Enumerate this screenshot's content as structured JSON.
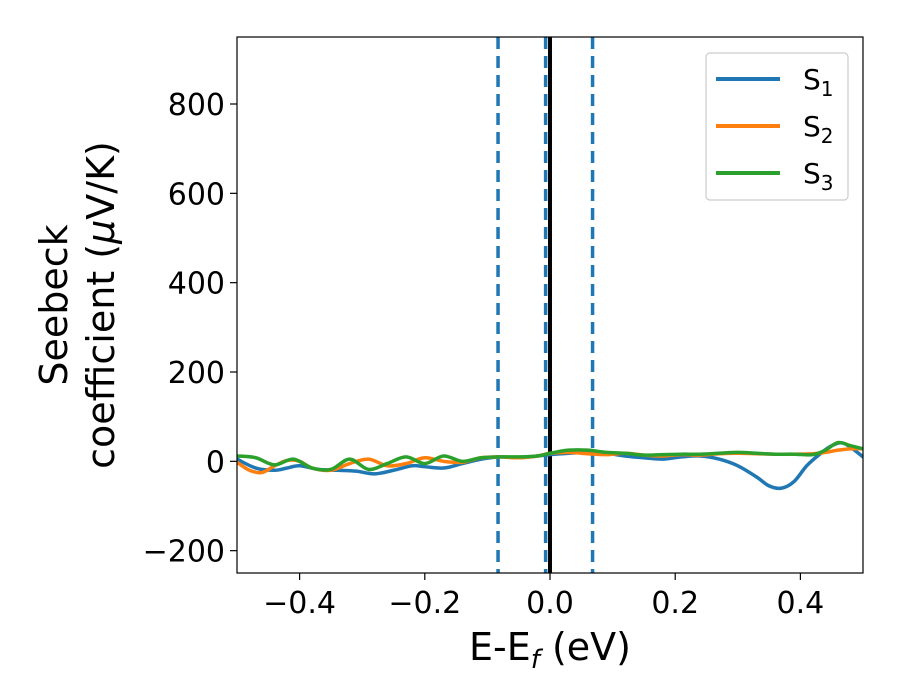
{
  "chart_data": {
    "type": "line",
    "xlabel": "E-E",
    "xlabel_sub": "f",
    "xlabel_unit": " (eV)",
    "ylabel_line1": "Seebeck",
    "ylabel_line2": "coefficient  (",
    "ylabel_mu": "μ",
    "ylabel_unit": "V/K)",
    "xlim": [
      -0.5,
      0.5
    ],
    "ylim": [
      -250,
      950
    ],
    "xticks": [
      -0.4,
      -0.2,
      0.0,
      0.2,
      0.4
    ],
    "xtick_labels": [
      "−0.4",
      "−0.2",
      "0.0",
      "0.2",
      "0.4"
    ],
    "yticks": [
      -200,
      0,
      200,
      400,
      600,
      800
    ],
    "ytick_labels": [
      "−200",
      "0",
      "200",
      "400",
      "600",
      "800"
    ],
    "legend_position": "top-right",
    "vlines": [
      {
        "x": -0.083,
        "style": "dashed",
        "color": "#1f77b4"
      },
      {
        "x": -0.007,
        "style": "dashed",
        "color": "#1f77b4"
      },
      {
        "x": 0.068,
        "style": "dashed",
        "color": "#1f77b4"
      },
      {
        "x": 0.0,
        "style": "solid",
        "color": "#000000"
      }
    ],
    "series": [
      {
        "name": "S",
        "sub": "1",
        "color": "#1f77b4",
        "x": [
          -0.5,
          -0.47,
          -0.44,
          -0.42,
          -0.4,
          -0.37,
          -0.34,
          -0.31,
          -0.28,
          -0.25,
          -0.22,
          -0.2,
          -0.17,
          -0.14,
          -0.11,
          -0.08,
          -0.05,
          -0.02,
          0.0,
          0.03,
          0.06,
          0.09,
          0.12,
          0.15,
          0.18,
          0.21,
          0.24,
          0.27,
          0.3,
          0.33,
          0.35,
          0.37,
          0.39,
          0.41,
          0.43,
          0.45,
          0.47,
          0.5
        ],
        "y": [
          5,
          -15,
          -20,
          -15,
          -10,
          -18,
          -20,
          -22,
          -28,
          -20,
          -10,
          -12,
          -15,
          -5,
          5,
          10,
          8,
          12,
          15,
          18,
          20,
          18,
          12,
          8,
          5,
          10,
          12,
          5,
          -10,
          -35,
          -55,
          -60,
          -45,
          -10,
          15,
          35,
          40,
          10
        ]
      },
      {
        "name": "S",
        "sub": "2",
        "color": "#ff7f0e",
        "x": [
          -0.5,
          -0.48,
          -0.46,
          -0.44,
          -0.42,
          -0.4,
          -0.38,
          -0.35,
          -0.32,
          -0.29,
          -0.26,
          -0.23,
          -0.2,
          -0.17,
          -0.14,
          -0.11,
          -0.08,
          -0.05,
          -0.02,
          0.0,
          0.03,
          0.06,
          0.09,
          0.12,
          0.15,
          0.18,
          0.21,
          0.24,
          0.27,
          0.3,
          0.33,
          0.36,
          0.39,
          0.42,
          0.44,
          0.46,
          0.48,
          0.5
        ],
        "y": [
          -2,
          -20,
          -25,
          -10,
          2,
          0,
          -15,
          -20,
          -5,
          5,
          -10,
          -5,
          8,
          0,
          -2,
          8,
          10,
          8,
          12,
          18,
          20,
          17,
          15,
          18,
          14,
          12,
          15,
          14,
          17,
          18,
          17,
          16,
          16,
          17,
          20,
          25,
          28,
          28
        ]
      },
      {
        "name": "S",
        "sub": "3",
        "color": "#2ca02c",
        "x": [
          -0.5,
          -0.47,
          -0.44,
          -0.41,
          -0.38,
          -0.35,
          -0.32,
          -0.29,
          -0.26,
          -0.23,
          -0.2,
          -0.17,
          -0.14,
          -0.11,
          -0.08,
          -0.05,
          -0.02,
          0.0,
          0.03,
          0.06,
          0.09,
          0.12,
          0.15,
          0.18,
          0.21,
          0.24,
          0.27,
          0.3,
          0.33,
          0.36,
          0.39,
          0.42,
          0.44,
          0.46,
          0.48,
          0.5
        ],
        "y": [
          12,
          8,
          -8,
          5,
          -15,
          -18,
          5,
          -18,
          -5,
          10,
          -5,
          12,
          0,
          8,
          10,
          10,
          12,
          18,
          25,
          25,
          20,
          18,
          14,
          15,
          16,
          16,
          18,
          20,
          18,
          16,
          16,
          15,
          25,
          42,
          35,
          28
        ]
      }
    ]
  }
}
